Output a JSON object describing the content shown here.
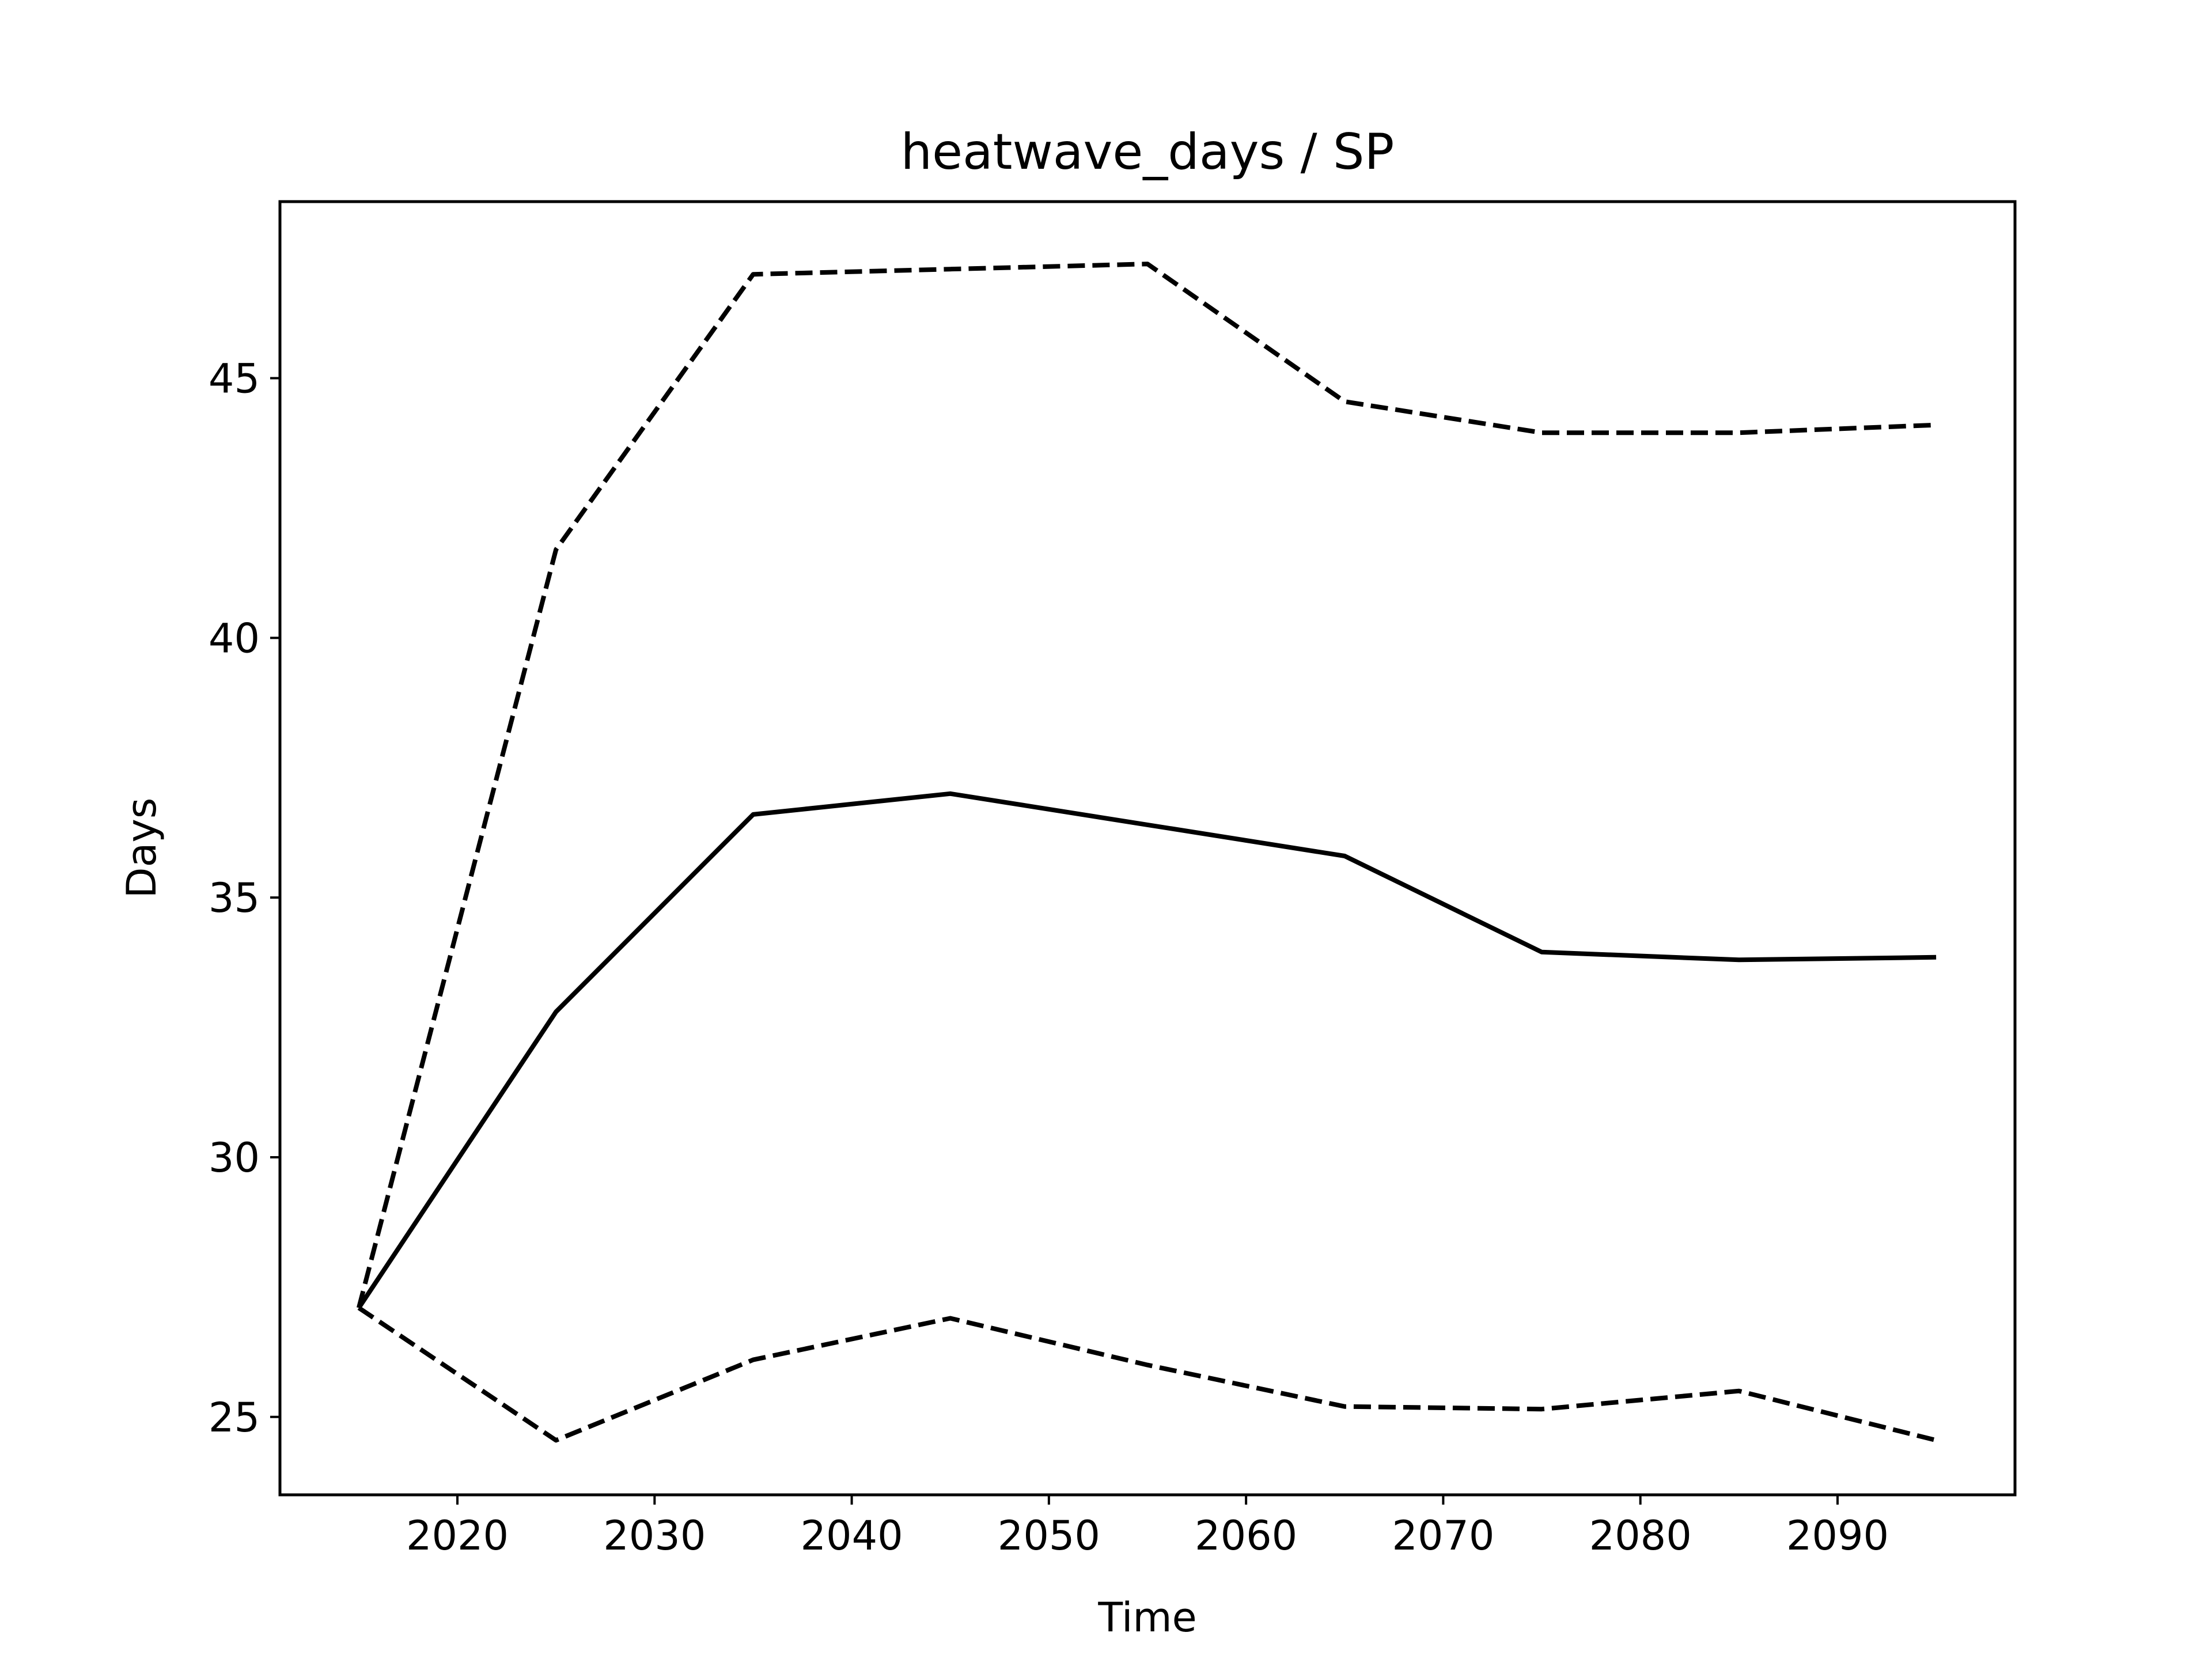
{
  "chart_data": {
    "type": "line",
    "title": "heatwave_days / SP",
    "xlabel": "Time",
    "ylabel": "Days",
    "xlim": [
      2011,
      2099
    ],
    "ylim": [
      23.5,
      48.4
    ],
    "xticks": [
      2020,
      2030,
      2040,
      2050,
      2060,
      2070,
      2080,
      2090
    ],
    "yticks": [
      25,
      30,
      35,
      40,
      45
    ],
    "x": [
      2015,
      2025,
      2035,
      2045,
      2055,
      2065,
      2075,
      2085,
      2095
    ],
    "grid": false,
    "series": [
      {
        "style": "solid",
        "color": "#000000",
        "values": [
          27.1,
          32.8,
          36.6,
          37.0,
          36.4,
          35.8,
          33.95,
          33.8,
          33.85
        ]
      },
      {
        "style": "dashed",
        "color": "#000000",
        "values": [
          27.1,
          41.7,
          47.0,
          47.1,
          47.2,
          44.55,
          43.95,
          43.95,
          44.1
        ]
      },
      {
        "style": "dashed",
        "color": "#000000",
        "values": [
          27.1,
          24.55,
          26.1,
          26.9,
          26.0,
          25.2,
          25.15,
          25.5,
          24.55
        ]
      }
    ]
  }
}
